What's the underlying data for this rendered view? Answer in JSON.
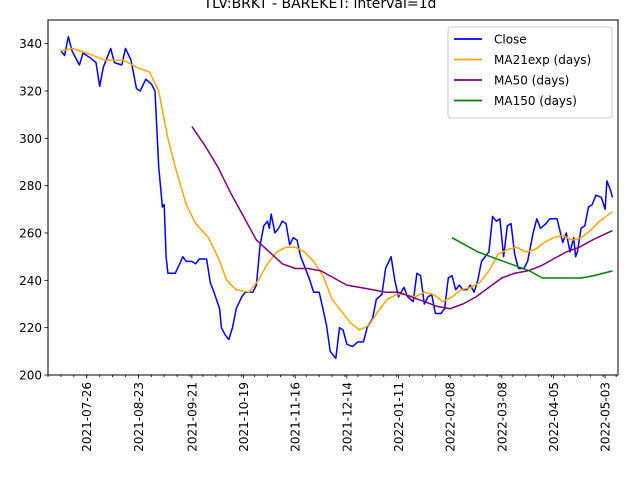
{
  "chart_data": {
    "type": "line",
    "title": "TLV:BRKT - BAREKET: interval=1d",
    "xlabel": "",
    "ylabel": "",
    "ylim": [
      200,
      350
    ],
    "yticks": [
      200,
      220,
      240,
      260,
      280,
      300,
      320,
      340
    ],
    "xlim": [
      "2021-07-05",
      "2022-05-10"
    ],
    "xticks": [
      "2021-07-26",
      "2021-08-23",
      "2021-09-21",
      "2021-10-19",
      "2021-11-16",
      "2021-12-14",
      "2022-01-11",
      "2022-02-08",
      "2022-03-08",
      "2022-04-05",
      "2022-05-03"
    ],
    "grid": false,
    "legend_position": "top-right",
    "series": [
      {
        "name": "Close",
        "color": "#0000ff",
        "points": [
          [
            "2021-07-12",
            337
          ],
          [
            "2021-07-14",
            335
          ],
          [
            "2021-07-16",
            343
          ],
          [
            "2021-07-18",
            337
          ],
          [
            "2021-07-20",
            334
          ],
          [
            "2021-07-22",
            331
          ],
          [
            "2021-07-24",
            336
          ],
          [
            "2021-07-28",
            334
          ],
          [
            "2021-07-31",
            332
          ],
          [
            "2021-08-02",
            322
          ],
          [
            "2021-08-04",
            330
          ],
          [
            "2021-08-08",
            338
          ],
          [
            "2021-08-10",
            332
          ],
          [
            "2021-08-14",
            331
          ],
          [
            "2021-08-16",
            338
          ],
          [
            "2021-08-19",
            333
          ],
          [
            "2021-08-22",
            321
          ],
          [
            "2021-08-24",
            320
          ],
          [
            "2021-08-27",
            325
          ],
          [
            "2021-08-30",
            323
          ],
          [
            "2021-09-01",
            320
          ],
          [
            "2021-09-03",
            288
          ],
          [
            "2021-09-05",
            271
          ],
          [
            "2021-09-06",
            272
          ],
          [
            "2021-09-07",
            250
          ],
          [
            "2021-09-08",
            243
          ],
          [
            "2021-09-12",
            243
          ],
          [
            "2021-09-15",
            248
          ],
          [
            "2021-09-16",
            250
          ],
          [
            "2021-09-18",
            248
          ],
          [
            "2021-09-21",
            248
          ],
          [
            "2021-09-23",
            247
          ],
          [
            "2021-09-25",
            249
          ],
          [
            "2021-09-29",
            249
          ],
          [
            "2021-10-01",
            239
          ],
          [
            "2021-10-03",
            235
          ],
          [
            "2021-10-06",
            228
          ],
          [
            "2021-10-07",
            220
          ],
          [
            "2021-10-09",
            217
          ],
          [
            "2021-10-11",
            215
          ],
          [
            "2021-10-13",
            220
          ],
          [
            "2021-10-15",
            228
          ],
          [
            "2021-10-18",
            233
          ],
          [
            "2021-10-20",
            235
          ],
          [
            "2021-10-24",
            235
          ],
          [
            "2021-10-26",
            238
          ],
          [
            "2021-10-28",
            255
          ],
          [
            "2021-10-30",
            263
          ],
          [
            "2021-11-01",
            265
          ],
          [
            "2021-11-02",
            262
          ],
          [
            "2021-11-03",
            268
          ],
          [
            "2021-11-05",
            260
          ],
          [
            "2021-11-07",
            262
          ],
          [
            "2021-11-09",
            265
          ],
          [
            "2021-11-11",
            264
          ],
          [
            "2021-11-13",
            255
          ],
          [
            "2021-11-15",
            258
          ],
          [
            "2021-11-17",
            257
          ],
          [
            "2021-11-19",
            250
          ],
          [
            "2021-11-22",
            244
          ],
          [
            "2021-11-24",
            240
          ],
          [
            "2021-11-26",
            235
          ],
          [
            "2021-11-29",
            235
          ],
          [
            "2021-12-01",
            228
          ],
          [
            "2021-12-03",
            221
          ],
          [
            "2021-12-05",
            210
          ],
          [
            "2021-12-07",
            208
          ],
          [
            "2021-12-08",
            207
          ],
          [
            "2021-12-10",
            220
          ],
          [
            "2021-12-12",
            219
          ],
          [
            "2021-12-14",
            213
          ],
          [
            "2021-12-17",
            212
          ],
          [
            "2021-12-20",
            214
          ],
          [
            "2021-12-23",
            214
          ],
          [
            "2021-12-25",
            220
          ],
          [
            "2021-12-28",
            224
          ],
          [
            "2021-12-30",
            232
          ],
          [
            "2022-01-02",
            234
          ],
          [
            "2022-01-04",
            245
          ],
          [
            "2022-01-07",
            250
          ],
          [
            "2022-01-09",
            240
          ],
          [
            "2022-01-11",
            233
          ],
          [
            "2022-01-14",
            237
          ],
          [
            "2022-01-16",
            233
          ],
          [
            "2022-01-19",
            231
          ],
          [
            "2022-01-21",
            243
          ],
          [
            "2022-01-23",
            242
          ],
          [
            "2022-01-25",
            230
          ],
          [
            "2022-01-27",
            233
          ],
          [
            "2022-01-29",
            234
          ],
          [
            "2022-01-31",
            226
          ],
          [
            "2022-02-03",
            226
          ],
          [
            "2022-02-05",
            228
          ],
          [
            "2022-02-07",
            241
          ],
          [
            "2022-02-09",
            242
          ],
          [
            "2022-02-11",
            236
          ],
          [
            "2022-02-13",
            238
          ],
          [
            "2022-02-15",
            236
          ],
          [
            "2022-02-17",
            236
          ],
          [
            "2022-02-19",
            238
          ],
          [
            "2022-02-21",
            235
          ],
          [
            "2022-02-23",
            240
          ],
          [
            "2022-02-25",
            248
          ],
          [
            "2022-02-27",
            250
          ],
          [
            "2022-03-01",
            252
          ],
          [
            "2022-03-03",
            267
          ],
          [
            "2022-03-05",
            265
          ],
          [
            "2022-03-07",
            266
          ],
          [
            "2022-03-09",
            250
          ],
          [
            "2022-03-11",
            263
          ],
          [
            "2022-03-13",
            264
          ],
          [
            "2022-03-15",
            251
          ],
          [
            "2022-03-17",
            245
          ],
          [
            "2022-03-20",
            245
          ],
          [
            "2022-03-22",
            248
          ],
          [
            "2022-03-25",
            260
          ],
          [
            "2022-03-27",
            266
          ],
          [
            "2022-03-29",
            262
          ],
          [
            "2022-04-01",
            264
          ],
          [
            "2022-04-03",
            266
          ],
          [
            "2022-04-07",
            266
          ],
          [
            "2022-04-10",
            256
          ],
          [
            "2022-04-12",
            260
          ],
          [
            "2022-04-14",
            252
          ],
          [
            "2022-04-16",
            258
          ],
          [
            "2022-04-17",
            250
          ],
          [
            "2022-04-18",
            252
          ],
          [
            "2022-04-20",
            262
          ],
          [
            "2022-04-22",
            263
          ],
          [
            "2022-04-24",
            271
          ],
          [
            "2022-04-26",
            272
          ],
          [
            "2022-04-28",
            276
          ],
          [
            "2022-05-01",
            275
          ],
          [
            "2022-05-03",
            270
          ],
          [
            "2022-05-04",
            282
          ],
          [
            "2022-05-06",
            278
          ],
          [
            "2022-05-07",
            275
          ]
        ]
      },
      {
        "name": "MA21exp (days)",
        "color": "#ffa500",
        "points": [
          [
            "2021-07-12",
            337
          ],
          [
            "2021-07-18",
            338
          ],
          [
            "2021-07-26",
            336
          ],
          [
            "2021-08-05",
            333
          ],
          [
            "2021-08-15",
            333
          ],
          [
            "2021-08-22",
            330
          ],
          [
            "2021-08-29",
            328
          ],
          [
            "2021-09-03",
            320
          ],
          [
            "2021-09-08",
            300
          ],
          [
            "2021-09-13",
            285
          ],
          [
            "2021-09-18",
            272
          ],
          [
            "2021-09-23",
            264
          ],
          [
            "2021-09-30",
            258
          ],
          [
            "2021-10-05",
            250
          ],
          [
            "2021-10-10",
            240
          ],
          [
            "2021-10-15",
            236
          ],
          [
            "2021-10-22",
            235
          ],
          [
            "2021-10-27",
            240
          ],
          [
            "2021-11-01",
            247
          ],
          [
            "2021-11-06",
            252
          ],
          [
            "2021-11-11",
            254
          ],
          [
            "2021-11-16",
            254
          ],
          [
            "2021-11-21",
            252
          ],
          [
            "2021-11-26",
            248
          ],
          [
            "2021-12-01",
            242
          ],
          [
            "2021-12-06",
            232
          ],
          [
            "2021-12-11",
            227
          ],
          [
            "2021-12-16",
            222
          ],
          [
            "2021-12-21",
            219
          ],
          [
            "2021-12-26",
            221
          ],
          [
            "2021-12-31",
            227
          ],
          [
            "2022-01-05",
            232
          ],
          [
            "2022-01-10",
            234
          ],
          [
            "2022-01-15",
            234
          ],
          [
            "2022-01-20",
            233
          ],
          [
            "2022-01-25",
            235
          ],
          [
            "2022-01-30",
            234
          ],
          [
            "2022-02-04",
            231
          ],
          [
            "2022-02-09",
            233
          ],
          [
            "2022-02-14",
            236
          ],
          [
            "2022-02-19",
            237
          ],
          [
            "2022-02-24",
            239
          ],
          [
            "2022-03-01",
            244
          ],
          [
            "2022-03-06",
            251
          ],
          [
            "2022-03-11",
            253
          ],
          [
            "2022-03-16",
            254
          ],
          [
            "2022-03-21",
            252
          ],
          [
            "2022-03-26",
            253
          ],
          [
            "2022-03-31",
            256
          ],
          [
            "2022-04-05",
            258
          ],
          [
            "2022-04-10",
            259
          ],
          [
            "2022-04-15",
            257
          ],
          [
            "2022-04-20",
            258
          ],
          [
            "2022-04-25",
            261
          ],
          [
            "2022-04-30",
            265
          ],
          [
            "2022-05-07",
            269
          ]
        ]
      },
      {
        "name": "MA50 (days)",
        "color": "#800080",
        "points": [
          [
            "2021-09-21",
            305
          ],
          [
            "2021-09-28",
            297
          ],
          [
            "2021-10-05",
            288
          ],
          [
            "2021-10-12",
            277
          ],
          [
            "2021-10-19",
            267
          ],
          [
            "2021-10-26",
            257
          ],
          [
            "2021-11-02",
            252
          ],
          [
            "2021-11-09",
            247
          ],
          [
            "2021-11-16",
            245
          ],
          [
            "2021-11-23",
            245
          ],
          [
            "2021-11-30",
            244
          ],
          [
            "2021-12-07",
            241
          ],
          [
            "2021-12-14",
            238
          ],
          [
            "2021-12-21",
            237
          ],
          [
            "2021-12-28",
            236
          ],
          [
            "2022-01-04",
            235
          ],
          [
            "2022-01-11",
            235
          ],
          [
            "2022-01-18",
            233
          ],
          [
            "2022-01-25",
            231
          ],
          [
            "2022-02-01",
            229
          ],
          [
            "2022-02-08",
            228
          ],
          [
            "2022-02-15",
            230
          ],
          [
            "2022-02-22",
            233
          ],
          [
            "2022-03-01",
            237
          ],
          [
            "2022-03-08",
            241
          ],
          [
            "2022-03-15",
            243
          ],
          [
            "2022-03-22",
            244
          ],
          [
            "2022-03-29",
            246
          ],
          [
            "2022-04-05",
            249
          ],
          [
            "2022-04-12",
            252
          ],
          [
            "2022-04-19",
            254
          ],
          [
            "2022-04-26",
            257
          ],
          [
            "2022-05-07",
            261
          ]
        ]
      },
      {
        "name": "MA150 (days)",
        "color": "#008000",
        "points": [
          [
            "2022-02-09",
            258
          ],
          [
            "2022-02-16",
            255
          ],
          [
            "2022-02-23",
            252
          ],
          [
            "2022-03-02",
            250
          ],
          [
            "2022-03-09",
            248
          ],
          [
            "2022-03-16",
            246
          ],
          [
            "2022-03-23",
            244
          ],
          [
            "2022-03-30",
            241
          ],
          [
            "2022-04-06",
            241
          ],
          [
            "2022-04-13",
            241
          ],
          [
            "2022-04-20",
            241
          ],
          [
            "2022-04-27",
            242
          ],
          [
            "2022-05-07",
            244
          ]
        ]
      }
    ]
  }
}
